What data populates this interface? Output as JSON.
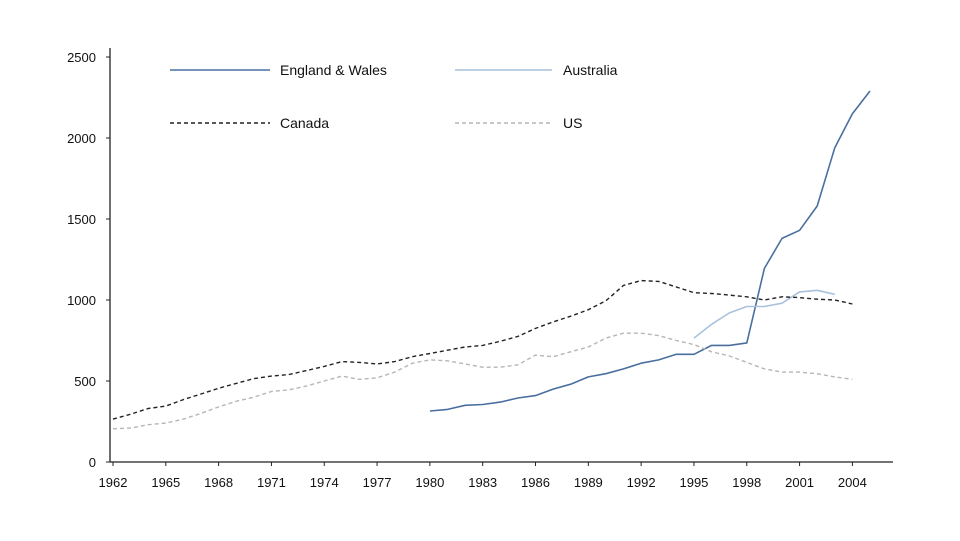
{
  "chart_data": {
    "type": "line",
    "title": "",
    "xlabel": "",
    "ylabel": "",
    "xlim": [
      1962,
      2005
    ],
    "ylim": [
      0,
      2500
    ],
    "grid": false,
    "legend_position": "top",
    "x_ticks": [
      "1962",
      "1965",
      "1968",
      "1971",
      "1974",
      "1977",
      "1980",
      "1983",
      "1986",
      "1989",
      "1992",
      "1995",
      "1998",
      "2001",
      "2004"
    ],
    "y_ticks": [
      "0",
      "500",
      "1000",
      "1500",
      "2000",
      "2500"
    ],
    "series": [
      {
        "name": "England & Wales",
        "color": "#4a6f9f",
        "dash": "solid",
        "x": [
          1980,
          1981,
          1982,
          1983,
          1984,
          1985,
          1986,
          1987,
          1988,
          1989,
          1990,
          1991,
          1992,
          1993,
          1994,
          1995,
          1996,
          1997,
          1998,
          1999,
          2000,
          2001,
          2002,
          2003,
          2004,
          2005
        ],
        "values": [
          315,
          325,
          350,
          355,
          370,
          395,
          410,
          450,
          480,
          525,
          545,
          575,
          610,
          630,
          665,
          665,
          720,
          720,
          735,
          1195,
          1380,
          1430,
          1580,
          1940,
          2150,
          2290
        ]
      },
      {
        "name": "Australia",
        "color": "#a9c1dc",
        "dash": "solid",
        "x": [
          1995,
          1996,
          1997,
          1998,
          1999,
          2000,
          2001,
          2002,
          2003
        ],
        "values": [
          765,
          850,
          920,
          960,
          960,
          980,
          1050,
          1060,
          1035
        ]
      },
      {
        "name": "Canada",
        "color": "#222222",
        "dash": "dashed",
        "x": [
          1962,
          1963,
          1964,
          1965,
          1966,
          1967,
          1968,
          1969,
          1970,
          1971,
          1972,
          1973,
          1974,
          1975,
          1976,
          1977,
          1978,
          1979,
          1980,
          1981,
          1982,
          1983,
          1984,
          1985,
          1986,
          1987,
          1988,
          1989,
          1990,
          1991,
          1992,
          1993,
          1994,
          1995,
          1996,
          1997,
          1998,
          1999,
          2000,
          2001,
          2002,
          2003,
          2004
        ],
        "values": [
          265,
          295,
          330,
          345,
          385,
          420,
          455,
          485,
          515,
          530,
          540,
          565,
          590,
          620,
          615,
          605,
          620,
          650,
          670,
          690,
          710,
          720,
          745,
          775,
          825,
          865,
          900,
          940,
          995,
          1090,
          1120,
          1115,
          1080,
          1045,
          1040,
          1030,
          1020,
          1000,
          1020,
          1015,
          1005,
          1000,
          975
        ]
      },
      {
        "name": "US",
        "color": "#b6b6b6",
        "dash": "dashed",
        "x": [
          1962,
          1963,
          1964,
          1965,
          1966,
          1967,
          1968,
          1969,
          1970,
          1971,
          1972,
          1973,
          1974,
          1975,
          1976,
          1977,
          1978,
          1979,
          1980,
          1981,
          1982,
          1983,
          1984,
          1985,
          1986,
          1987,
          1988,
          1989,
          1990,
          1991,
          1992,
          1993,
          1994,
          1995,
          1996,
          1997,
          1998,
          1999,
          2000,
          2001,
          2002,
          2003,
          2004
        ],
        "values": [
          205,
          210,
          230,
          240,
          265,
          300,
          340,
          375,
          400,
          435,
          445,
          470,
          500,
          530,
          510,
          520,
          555,
          610,
          630,
          625,
          605,
          585,
          585,
          600,
          660,
          650,
          680,
          710,
          765,
          795,
          795,
          780,
          750,
          725,
          680,
          655,
          615,
          575,
          555,
          555,
          545,
          525,
          510
        ]
      }
    ]
  }
}
